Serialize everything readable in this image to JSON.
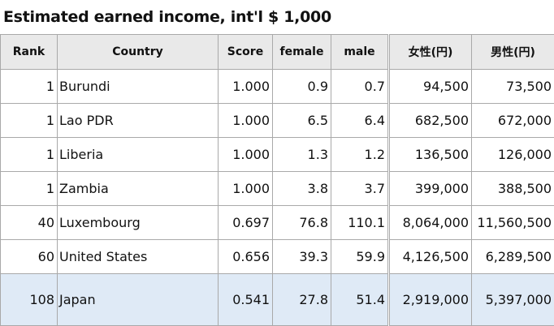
{
  "title": "Estimated earned income, int'l $ 1,000",
  "table": {
    "headers": [
      "Rank",
      "Country",
      "Score",
      "female",
      "male",
      "女性(円)",
      "男性(円)"
    ],
    "rows": [
      [
        "1",
        "Burundi",
        "1.000",
        "0.9",
        "0.7",
        "94,500",
        "73,500"
      ],
      [
        "1",
        "Lao PDR",
        "1.000",
        "6.5",
        "6.4",
        "682,500",
        "672,000"
      ],
      [
        "1",
        "Liberia",
        "1.000",
        "1.3",
        "1.2",
        "136,500",
        "126,000"
      ],
      [
        "1",
        "Zambia",
        "1.000",
        "3.8",
        "3.7",
        "399,000",
        "388,500"
      ],
      [
        "40",
        "Luxembourg",
        "0.697",
        "76.8",
        "110.1",
        "8,064,000",
        "11,560,500"
      ],
      [
        "60",
        "United States",
        "0.656",
        "39.3",
        "59.9",
        "4,126,500",
        "6,289,500"
      ],
      [
        "108",
        "Japan",
        "0.541",
        "27.8",
        "51.4",
        "2,919,000",
        "5,397,000"
      ]
    ]
  }
}
